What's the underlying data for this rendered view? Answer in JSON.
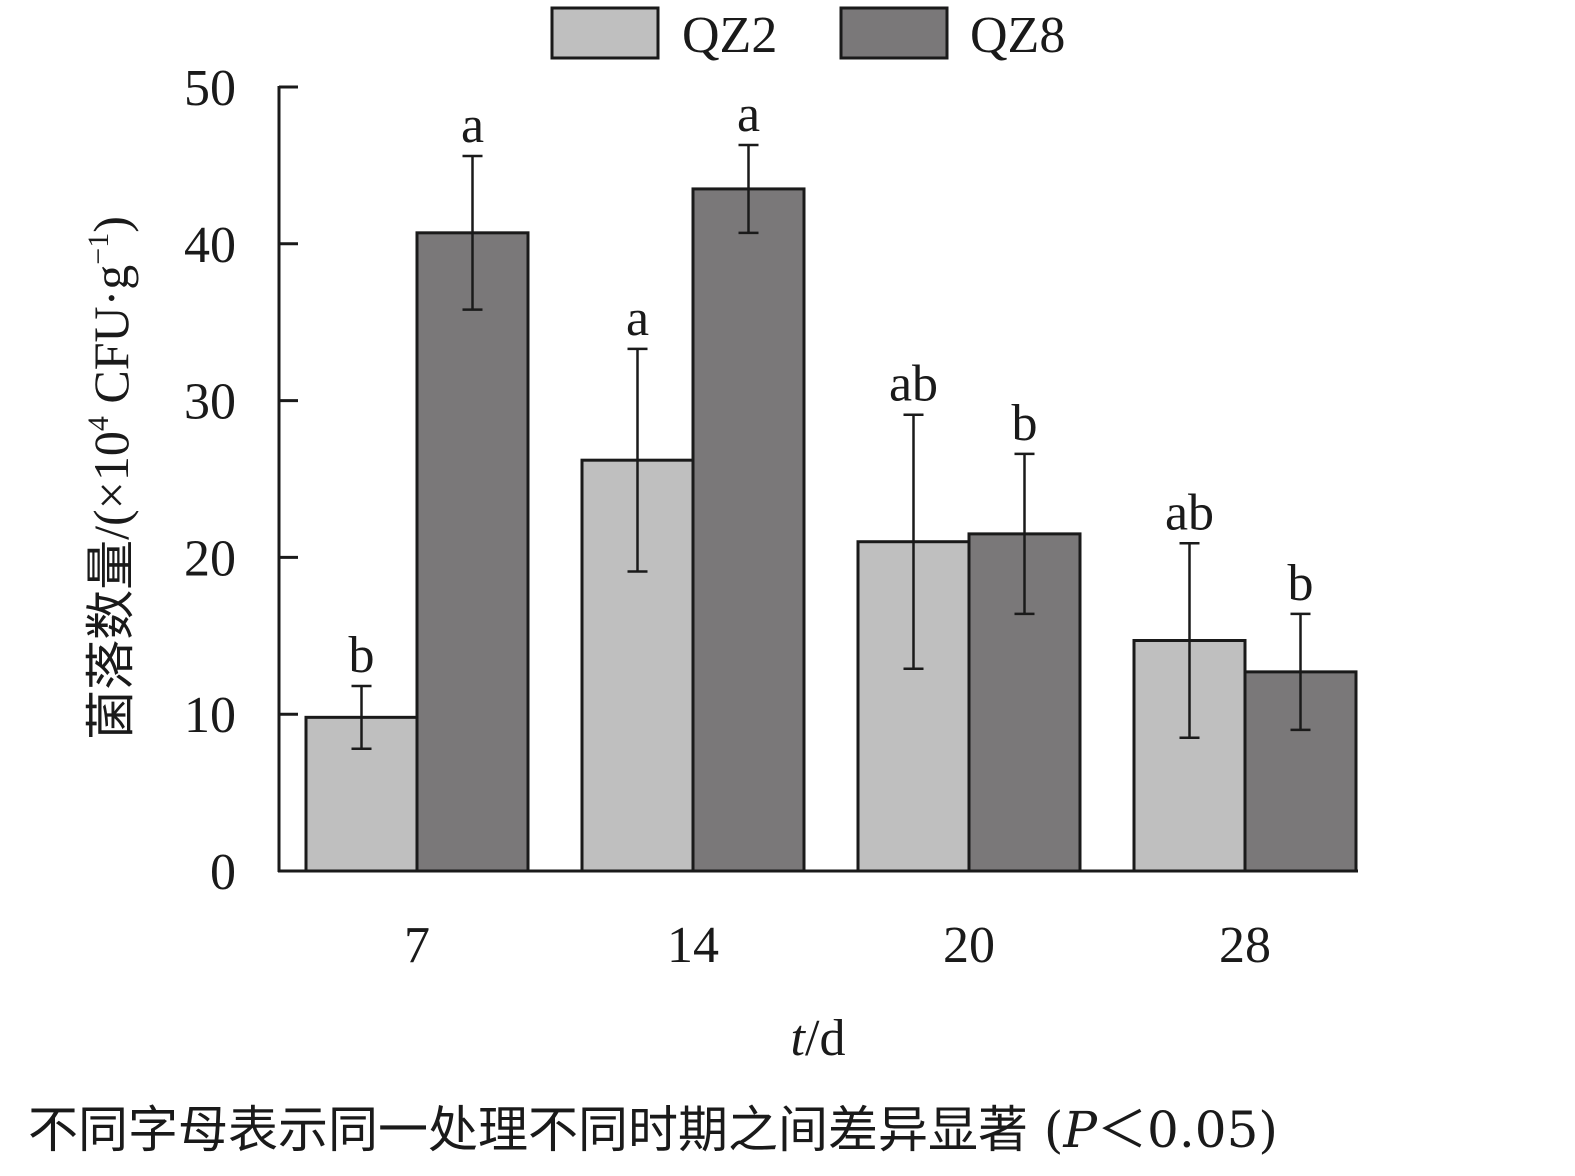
{
  "chart_data": {
    "type": "bar",
    "categories": [
      "7",
      "14",
      "20",
      "28"
    ],
    "series": [
      {
        "name": "QZ2",
        "values": [
          9.8,
          26.2,
          21.0,
          14.7
        ],
        "errors": [
          2.0,
          7.1,
          8.1,
          6.2
        ],
        "letters": [
          "b",
          "a",
          "ab",
          "ab"
        ],
        "color": "#bfbfbf"
      },
      {
        "name": "QZ8",
        "values": [
          40.7,
          43.5,
          21.5,
          12.7
        ],
        "errors": [
          4.9,
          2.8,
          5.1,
          3.7
        ],
        "letters": [
          "a",
          "a",
          "b",
          "b"
        ],
        "color": "#7a7879"
      }
    ],
    "xlabel_var": "t",
    "xlabel_unit": "/d",
    "ylabel_main": "菌落数量/(×10",
    "ylabel_exp1": "4",
    "ylabel_mid": " CFU·g",
    "ylabel_exp2": "−1",
    "ylabel_end": ")",
    "ylim": [
      0,
      50
    ],
    "yticks": [
      "0",
      "10",
      "20",
      "30",
      "40",
      "50"
    ],
    "grid": false,
    "legend_position": "top-center"
  },
  "caption": {
    "text": "不同字母表示同一处理不同时期之间差异显著 (",
    "p_symbol": "P",
    "condition": "＜0.05)"
  }
}
